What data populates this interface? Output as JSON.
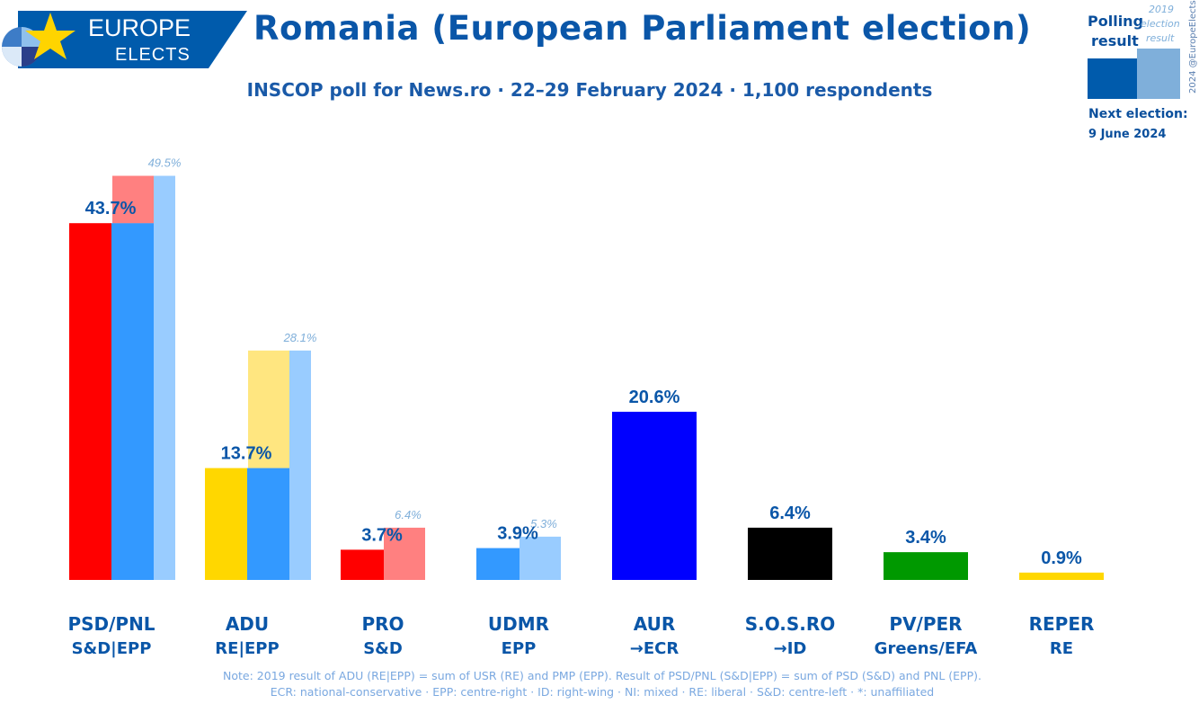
{
  "header": {
    "logo_line1": "EUROPE",
    "logo_line2": "ELECTS",
    "title": "Romania (European Parliament election)",
    "subtitle": "INSCOP poll for News.ro · 22–29 February 2024 · 1,100 respondents"
  },
  "legend": {
    "polling_line1": "Polling",
    "polling_line2": "result",
    "prev_line1": "2019",
    "prev_line2": "election",
    "prev_line3": "result",
    "copyright": "2024 @EuropeElects",
    "next_label": "Next election:",
    "next_date": "9 June 2024",
    "colors": {
      "polling": "#005bac",
      "previous": "#7fafda"
    }
  },
  "chart_data": {
    "type": "bar",
    "title": "Romania (European Parliament election)",
    "ylim": [
      0,
      50
    ],
    "categories": [
      {
        "name": "PSD/PNL",
        "group": "S&D|EPP",
        "value": 43.7,
        "label": "43.7%",
        "colors": [
          "#ff0000",
          "#3399ff"
        ],
        "prev": 49.5,
        "prev_label": "49.5%",
        "prev_split": [
          43.7,
          5.8
        ],
        "prev_colors": [
          "#3399ff",
          "#ff8080"
        ],
        "prev_edge": "#99ccff"
      },
      {
        "name": "ADU",
        "group": "RE|EPP",
        "value": 13.7,
        "label": "13.7%",
        "colors": [
          "#ffd700",
          "#3399ff"
        ],
        "prev": 28.1,
        "prev_label": "28.1%",
        "prev_split": [
          13.7,
          14.4
        ],
        "prev_colors": [
          "#3399ff",
          "#ffe680"
        ],
        "prev_edge": "#99ccff"
      },
      {
        "name": "PRO",
        "group": "S&D",
        "value": 3.7,
        "label": "3.7%",
        "colors": [
          "#ff0000"
        ],
        "prev": 6.4,
        "prev_label": "6.4%",
        "prev_split": [
          6.4
        ],
        "prev_colors": [
          "#ff8080"
        ],
        "prev_edge": null
      },
      {
        "name": "UDMR",
        "group": "EPP",
        "value": 3.9,
        "label": "3.9%",
        "colors": [
          "#3399ff"
        ],
        "prev": 5.3,
        "prev_label": "5.3%",
        "prev_split": [
          5.3
        ],
        "prev_colors": [
          "#99ccff"
        ],
        "prev_edge": null
      },
      {
        "name": "AUR",
        "group": "→ECR",
        "value": 20.6,
        "label": "20.6%",
        "colors": [
          "#0000ff"
        ],
        "prev": null
      },
      {
        "name": "S.O.S.RO",
        "group": "→ID",
        "value": 6.4,
        "label": "6.4%",
        "colors": [
          "#000000"
        ],
        "prev": null
      },
      {
        "name": "PV/PER",
        "group": "Greens/EFA",
        "value": 3.4,
        "label": "3.4%",
        "colors": [
          "#009900"
        ],
        "prev": null
      },
      {
        "name": "REPER",
        "group": "RE",
        "value": 0.9,
        "label": "0.9%",
        "colors": [
          "#ffd700"
        ],
        "prev": null
      }
    ]
  },
  "notes": {
    "line1": "Note: 2019 result of ADU (RE|EPP) = sum of USR (RE) and PMP (EPP). Result of PSD/PNL (S&D|EPP) = sum of PSD (S&D) and PNL (EPP).",
    "line2": "ECR: national-conservative · EPP: centre-right · ID: right-wing · NI: mixed · RE: liberal · S&D: centre-left · *: unaffiliated"
  }
}
